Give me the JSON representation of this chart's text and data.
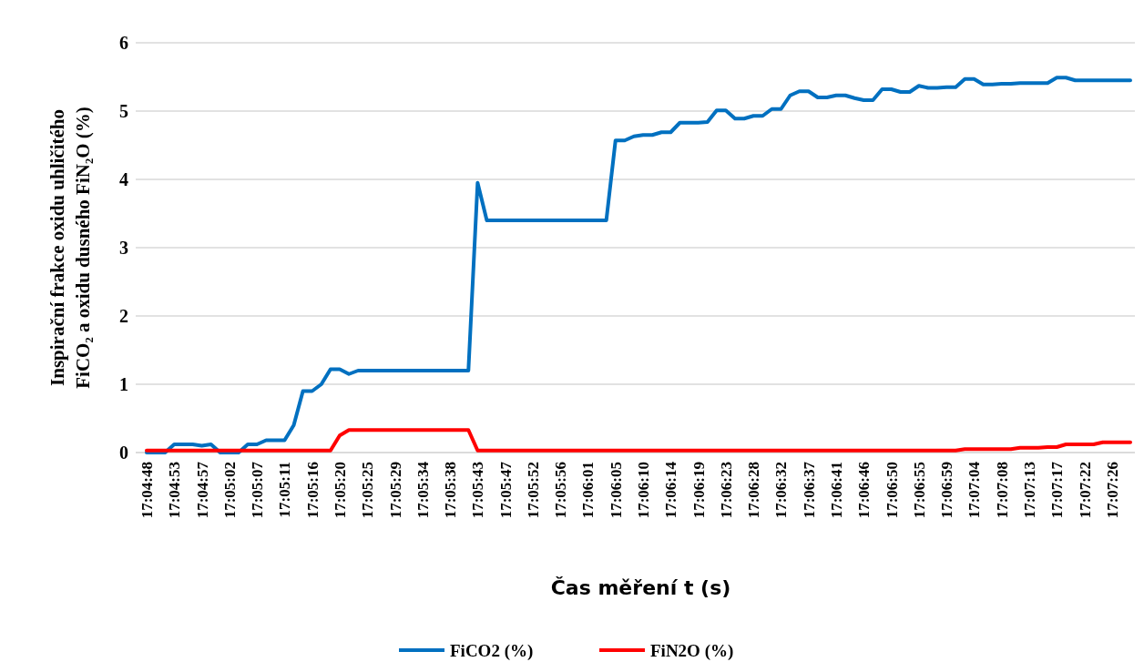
{
  "chart_data": {
    "type": "line",
    "xlabel": "Čas měření t (s)",
    "ylabel": "Inspirační frakce oxidu uhličitého FiCO₂ a oxidu dusného FiN₂O (%)",
    "categories": [
      "17:04:48",
      null,
      null,
      "17:04:53",
      null,
      null,
      "17:04:57",
      null,
      null,
      "17:05:02",
      null,
      null,
      "17:05:07",
      null,
      null,
      "17:05:11",
      null,
      null,
      "17:05:16",
      null,
      null,
      "17:05:20",
      null,
      null,
      "17:05:25",
      null,
      null,
      "17:05:29",
      null,
      null,
      "17:05:34",
      null,
      null,
      "17:05:38",
      null,
      null,
      "17:05:43",
      null,
      null,
      "17:05:47",
      null,
      null,
      "17:05:52",
      null,
      null,
      "17:05:56",
      null,
      null,
      "17:06:01",
      null,
      null,
      "17:06:05",
      null,
      null,
      "17:06:10",
      null,
      null,
      "17:06:14",
      null,
      null,
      "17:06:19",
      null,
      null,
      "17:06:23",
      null,
      null,
      "17:06:28",
      null,
      null,
      "17:06:32",
      null,
      null,
      "17:06:37",
      null,
      null,
      "17:06:41",
      null,
      null,
      "17:06:46",
      null,
      null,
      "17:06:50",
      null,
      null,
      "17:06:55",
      null,
      null,
      "17:06:59",
      null,
      null,
      "17:07:04",
      null,
      null,
      "17:07:08",
      null,
      null,
      "17:07:13",
      null,
      null,
      "17:07:17",
      null,
      null,
      "17:07:22",
      null,
      null,
      "17:07:26",
      null,
      null
    ],
    "series": [
      {
        "name": "FiCO2 (%)",
        "color": "#0070c0",
        "values": [
          0,
          0,
          0,
          0.12,
          0.12,
          0.12,
          0.1,
          0.12,
          0,
          0,
          0,
          0.12,
          0.12,
          0.18,
          0.18,
          0.18,
          0.4,
          0.9,
          0.9,
          1.0,
          1.22,
          1.22,
          1.15,
          1.2,
          1.2,
          1.2,
          1.2,
          1.2,
          1.2,
          1.2,
          1.2,
          1.2,
          1.2,
          1.2,
          1.2,
          1.2,
          3.95,
          3.4,
          3.4,
          3.4,
          3.4,
          3.4,
          3.4,
          3.4,
          3.4,
          3.4,
          3.4,
          3.4,
          3.4,
          3.4,
          3.4,
          4.57,
          4.57,
          4.63,
          4.65,
          4.65,
          4.69,
          4.69,
          4.83,
          4.83,
          4.83,
          4.84,
          5.01,
          5.01,
          4.89,
          4.89,
          4.93,
          4.93,
          5.03,
          5.03,
          5.23,
          5.29,
          5.29,
          5.2,
          5.2,
          5.23,
          5.23,
          5.19,
          5.16,
          5.16,
          5.32,
          5.32,
          5.28,
          5.28,
          5.37,
          5.34,
          5.34,
          5.35,
          5.35,
          5.47,
          5.47,
          5.39,
          5.39,
          5.4,
          5.4,
          5.41,
          5.41,
          5.41,
          5.41,
          5.49,
          5.49,
          5.45,
          5.45,
          5.45,
          5.45,
          5.45,
          5.45,
          5.45
        ]
      },
      {
        "name": "FiN2O (%)",
        "color": "#ff0000",
        "values": [
          0.03,
          0.03,
          0.03,
          0.03,
          0.03,
          0.03,
          0.03,
          0.03,
          0.03,
          0.03,
          0.03,
          0.03,
          0.03,
          0.03,
          0.03,
          0.03,
          0.03,
          0.03,
          0.03,
          0.03,
          0.03,
          0.25,
          0.33,
          0.33,
          0.33,
          0.33,
          0.33,
          0.33,
          0.33,
          0.33,
          0.33,
          0.33,
          0.33,
          0.33,
          0.33,
          0.33,
          0.03,
          0.03,
          0.03,
          0.03,
          0.03,
          0.03,
          0.03,
          0.03,
          0.03,
          0.03,
          0.03,
          0.03,
          0.03,
          0.03,
          0.03,
          0.03,
          0.03,
          0.03,
          0.03,
          0.03,
          0.03,
          0.03,
          0.03,
          0.03,
          0.03,
          0.03,
          0.03,
          0.03,
          0.03,
          0.03,
          0.03,
          0.03,
          0.03,
          0.03,
          0.03,
          0.03,
          0.03,
          0.03,
          0.03,
          0.03,
          0.03,
          0.03,
          0.03,
          0.03,
          0.03,
          0.03,
          0.03,
          0.03,
          0.03,
          0.03,
          0.03,
          0.03,
          0.03,
          0.05,
          0.05,
          0.05,
          0.05,
          0.05,
          0.05,
          0.07,
          0.07,
          0.07,
          0.08,
          0.08,
          0.12,
          0.12,
          0.12,
          0.12,
          0.15,
          0.15,
          0.15,
          0.15
        ]
      }
    ],
    "ylim": [
      0,
      6
    ],
    "yticks": [
      0,
      1,
      2,
      3,
      4,
      5,
      6
    ],
    "grid": "y",
    "legend": "bottom",
    "marker": "none",
    "line_style": "solid"
  }
}
